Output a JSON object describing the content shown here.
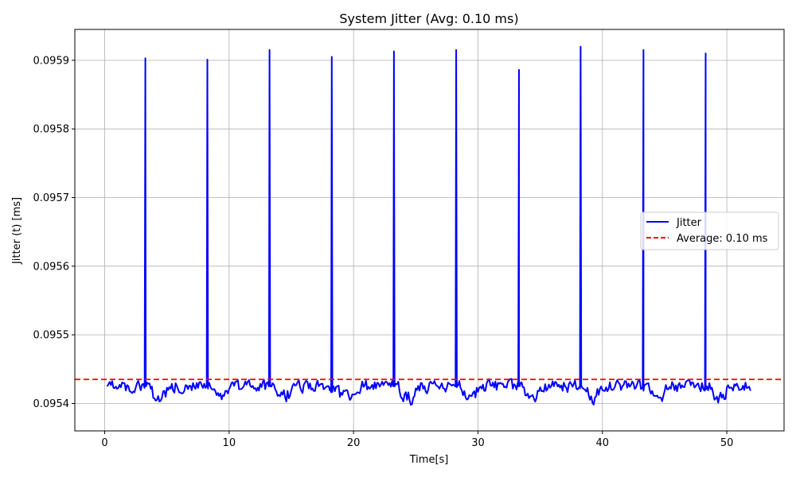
{
  "chart_data": {
    "type": "line",
    "title": "System Jitter (Avg: 0.10 ms)",
    "xlabel": "Time[s]",
    "ylabel": "Jitter (t) [ms]",
    "xlim": [
      -2.4,
      54.6
    ],
    "ylim": [
      0.09536,
      0.095945
    ],
    "xticks": [
      0,
      10,
      20,
      30,
      40,
      50
    ],
    "yticks": [
      0.0954,
      0.0955,
      0.0956,
      0.0957,
      0.0958,
      0.0959
    ],
    "ytick_labels": [
      "0.0954",
      "0.0955",
      "0.0956",
      "0.0957",
      "0.0958",
      "0.0959"
    ],
    "grid": true,
    "legend_position": "center-right",
    "series": [
      {
        "name": "Jitter",
        "color": "#0000ff",
        "style": "solid",
        "baseline": 0.095425,
        "x_range": [
          0.2,
          52.0
        ],
        "spikes": [
          {
            "x": 3.27,
            "y": 0.095903
          },
          {
            "x": 8.25,
            "y": 0.095901
          },
          {
            "x": 13.25,
            "y": 0.095915
          },
          {
            "x": 18.25,
            "y": 0.095905
          },
          {
            "x": 23.25,
            "y": 0.095913
          },
          {
            "x": 28.25,
            "y": 0.095915
          },
          {
            "x": 33.3,
            "y": 0.095886
          },
          {
            "x": 38.25,
            "y": 0.09592
          },
          {
            "x": 43.3,
            "y": 0.095915
          },
          {
            "x": 48.3,
            "y": 0.09591
          }
        ]
      },
      {
        "name": "Average: 0.10 ms",
        "color": "#ff0000",
        "style": "dashed",
        "y": 0.095435
      }
    ]
  }
}
